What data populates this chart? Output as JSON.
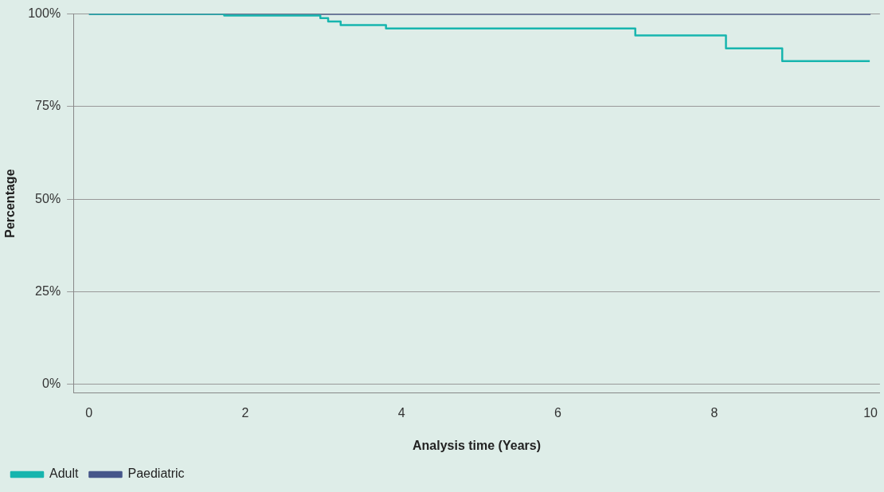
{
  "chart_data": {
    "type": "step",
    "xlabel": "Analysis time (Years)",
    "ylabel": "Percentage",
    "series": [
      {
        "name": "Adult",
        "color": "#17b5ae",
        "x": [
          0,
          1.73,
          2.96,
          3.06,
          3.22,
          3.8,
          6.99,
          8.15,
          8.87,
          9.99
        ],
        "values": [
          100,
          99.6,
          98.9,
          98,
          97,
          96.1,
          94.2,
          90.7,
          87.3,
          87.3
        ]
      },
      {
        "name": "Paediatric",
        "color": "#46568a",
        "x": [
          0,
          10
        ],
        "values": [
          100,
          100
        ]
      }
    ],
    "xlim": [
      -0.2,
      10.12
    ],
    "xticks": [
      0,
      2,
      4,
      6,
      8,
      10
    ],
    "ylim": [
      -2.3,
      100
    ],
    "yticks": [
      {
        "value": 0,
        "label": "0%"
      },
      {
        "value": 25,
        "label": "25%"
      },
      {
        "value": 50,
        "label": "50%"
      },
      {
        "value": 75,
        "label": "75%"
      },
      {
        "value": 100,
        "label": "100%"
      }
    ],
    "grid": "y",
    "legend": "bottom left"
  }
}
